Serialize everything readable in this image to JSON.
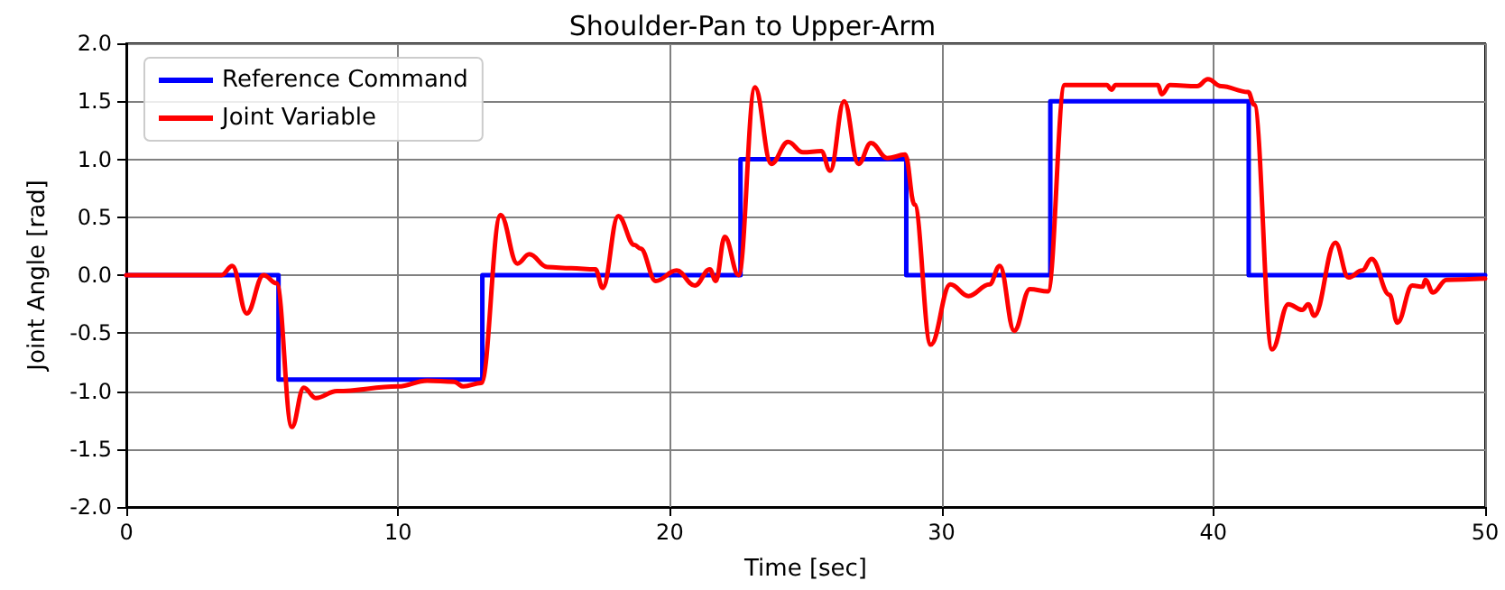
{
  "chart_data": {
    "type": "line",
    "title": "Shoulder-Pan to Upper-Arm",
    "xlabel": "Time [sec]",
    "ylabel": "Joint Angle [rad]",
    "xlim": [
      0,
      50
    ],
    "xticks": [
      0,
      10,
      20,
      30,
      40,
      50
    ],
    "ylim": [
      -2,
      2
    ],
    "yticks": [
      {
        "value": -2,
        "label": "-2.0"
      },
      {
        "value": -1.5,
        "label": "-1.5"
      },
      {
        "value": -1,
        "label": "-1.0"
      },
      {
        "value": -0.5,
        "label": "-0.5"
      },
      {
        "value": 0,
        "label": "0.0"
      },
      {
        "value": 0.5,
        "label": "0.5"
      },
      {
        "value": 1,
        "label": "1.0"
      },
      {
        "value": 1.5,
        "label": "1.5"
      },
      {
        "value": 2,
        "label": "2.0"
      }
    ],
    "grid": true,
    "legend": "top left",
    "marker": "none",
    "line_style": "solid",
    "series": [
      {
        "name": "Reference Command",
        "type": "step",
        "color": "#0000ff",
        "x": [
          0,
          5.6,
          13.1,
          22.6,
          28.7,
          34.0,
          41.3,
          50
        ],
        "values": [
          0,
          -0.9,
          0,
          1,
          0,
          1.5,
          0,
          0
        ]
      },
      {
        "name": "Joint Variable",
        "color": "#ff0000",
        "x": [
          0,
          3.5,
          3.9,
          4.43,
          5.05,
          5.53,
          6.09,
          6.53,
          6.97,
          7.75,
          10,
          11.07,
          12.06,
          12.4,
          13.06,
          13.77,
          14.39,
          14.83,
          15.49,
          16.37,
          17.26,
          17.53,
          18.1,
          18.7,
          18.92,
          19.48,
          20.25,
          20.92,
          21.47,
          21.69,
          22.02,
          22.53,
          23.13,
          23.73,
          24.35,
          24.9,
          25.57,
          25.9,
          26.41,
          26.94,
          27.4,
          28.0,
          28.66,
          29.0,
          29.6,
          30.32,
          30.99,
          31.76,
          32.14,
          32.67,
          33.25,
          33.91,
          34.53,
          36.08,
          36.25,
          36.4,
          37.96,
          38.1,
          38.4,
          39.4,
          39.8,
          40.28,
          41.28,
          41.5,
          42.16,
          42.76,
          43.27,
          43.49,
          43.71,
          44.49,
          44.97,
          45.48,
          45.82,
          46.48,
          46.77,
          47.32,
          47.7,
          47.8,
          48.08,
          48.58,
          50
        ],
        "values": [
          0,
          0,
          0.08,
          -0.33,
          0,
          -0.07,
          -1.31,
          -0.97,
          -1.06,
          -1.0,
          -0.96,
          -0.91,
          -0.92,
          -0.96,
          -0.93,
          0.52,
          0.1,
          0.18,
          0.07,
          0.06,
          0.05,
          -0.11,
          0.51,
          0.26,
          0.23,
          -0.05,
          0.04,
          -0.09,
          0.05,
          -0.05,
          0.33,
          0,
          1.62,
          0.96,
          1.15,
          1.06,
          1.07,
          0.9,
          1.5,
          0.96,
          1.14,
          1.01,
          1.04,
          0.61,
          -0.6,
          -0.08,
          -0.18,
          -0.08,
          0.08,
          -0.48,
          -0.12,
          -0.14,
          1.64,
          1.64,
          1.6,
          1.64,
          1.64,
          1.56,
          1.64,
          1.63,
          1.69,
          1.63,
          1.58,
          1.47,
          -0.64,
          -0.25,
          -0.3,
          -0.25,
          -0.35,
          0.28,
          -0.02,
          0.04,
          0.14,
          -0.17,
          -0.41,
          -0.09,
          -0.1,
          -0.04,
          -0.15,
          -0.04,
          -0.03
        ]
      }
    ]
  }
}
